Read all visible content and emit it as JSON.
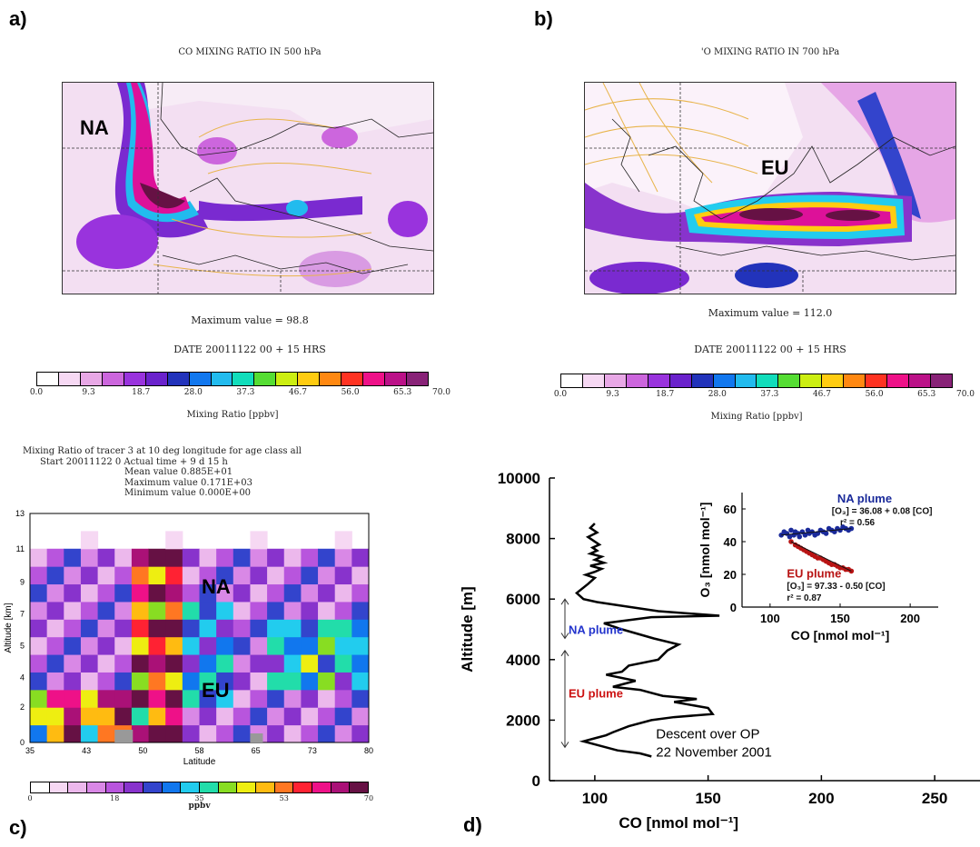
{
  "panels": {
    "a": {
      "label": "a)",
      "title": "CO MIXING RATIO IN 500 hPa",
      "region_label": "NA",
      "max_text": "Maximum value =  98.8",
      "date_text": "DATE 20011122   00 +   15  HRS"
    },
    "b": {
      "label": "b)",
      "title": "'O MIXING RATIO IN 700 hPa",
      "region_label": "EU",
      "max_text": "Maximum value = 112.0",
      "date_text": "DATE 20011122   00 +   15  HRS"
    },
    "c": {
      "label": "c)",
      "meta": [
        "Mixing Ratio of tracer  3 at   10 deg longitude for age class all",
        "Start 20011122      0   Actual time  +  9 d  15 h",
        "Mean value   0.885E+01",
        "Maximum value   0.171E+03",
        "Minimum value   0.000E+00"
      ],
      "na_label": "NA",
      "eu_label": "EU"
    },
    "d": {
      "label": "d)"
    }
  },
  "colorbar_ab": {
    "label": "Mixing Ratio [ppbv]",
    "ticks": [
      "0.0",
      "9.3",
      "18.7",
      "28.0",
      "37.3",
      "46.7",
      "56.0",
      "65.3",
      "70.0"
    ],
    "colors": [
      "#ffffff",
      "#f6d8f3",
      "#e8a8e6",
      "#cc66dd",
      "#9933dd",
      "#6a22cc",
      "#2233bb",
      "#1177ee",
      "#22bbee",
      "#11ddbb",
      "#55dd33",
      "#ccee11",
      "#ffcc11",
      "#ff8811",
      "#ff3322",
      "#ee1188",
      "#bb1188",
      "#882277"
    ]
  },
  "colorbar_c": {
    "label": "ppbv",
    "ticks": [
      "0",
      "18",
      "35",
      "53",
      "70"
    ],
    "colors": [
      "#ffffff",
      "#f6d8f3",
      "#ecb8ec",
      "#d988e6",
      "#b855dd",
      "#8833cc",
      "#3344cc",
      "#1177ee",
      "#22ccee",
      "#22ddaa",
      "#88dd22",
      "#eeee11",
      "#ffbb11",
      "#ff7722",
      "#ff2233",
      "#ee1188",
      "#aa1177",
      "#661144"
    ]
  },
  "chart_data": [
    {
      "type": "heatmap",
      "title": "Mixing Ratio of tracer  3 at   10 deg longitude for age class all",
      "xlabel": "Latitude",
      "ylabel": "Altitude [km]",
      "xlim": [
        35,
        80
      ],
      "ylim": [
        0,
        13
      ],
      "xticks": [
        "35",
        "43",
        "50",
        "58",
        "65",
        "73",
        "80"
      ],
      "yticks": [
        "0",
        "2",
        "4",
        "5",
        "7",
        "9",
        "11",
        "13"
      ],
      "yticks_values": [
        0,
        2,
        3.7,
        5.5,
        7.3,
        9.1,
        11,
        13
      ]
    },
    {
      "type": "line",
      "xlabel": "CO [nmol mol⁻¹]",
      "ylabel": "Altitude [m]",
      "xlim": [
        80,
        270
      ],
      "ylim": [
        0,
        10000
      ],
      "xticks": [
        100,
        150,
        200,
        250
      ],
      "yticks": [
        0,
        2000,
        4000,
        6000,
        8000,
        10000
      ],
      "annotation": [
        "Descent over OP",
        "22 November 2001"
      ],
      "plume_labels": [
        {
          "name": "NA plume",
          "range": [
            4700,
            6000
          ],
          "color": "#2233cc"
        },
        {
          "name": "EU plume",
          "range": [
            1100,
            4300
          ],
          "color": "#cc1111"
        }
      ],
      "series": [
        {
          "x": [
            100,
            98,
            101,
            97,
            100,
            102,
            99,
            101,
            98,
            103,
            100,
            104,
            98,
            103,
            100,
            96,
            100,
            97,
            92,
            95,
            101,
            110,
            128,
            155,
            125,
            104,
            112,
            126,
            137,
            132,
            128,
            115,
            112,
            105,
            118,
            108,
            120,
            130,
            145,
            135,
            150,
            152,
            135,
            125,
            115,
            108,
            105,
            100,
            95,
            100,
            110,
            120,
            125
          ],
          "y": [
            8500,
            8350,
            8200,
            8050,
            7900,
            7800,
            7700,
            7600,
            7500,
            7400,
            7300,
            7200,
            7100,
            7000,
            6900,
            6800,
            6700,
            6500,
            6200,
            6000,
            5900,
            5800,
            5600,
            5450,
            5400,
            5200,
            5000,
            4700,
            4500,
            4300,
            4000,
            3800,
            3600,
            3500,
            3300,
            3100,
            3000,
            2800,
            2700,
            2600,
            2400,
            2200,
            2100,
            2000,
            1800,
            1600,
            1500,
            1400,
            1300,
            1200,
            1000,
            900,
            800
          ]
        }
      ]
    },
    {
      "type": "scatter",
      "xlabel": "CO [nmol mol⁻¹]",
      "ylabel": "O₃ [nmol mol⁻¹]",
      "xlim": [
        80,
        220
      ],
      "ylim": [
        0,
        70
      ],
      "xticks": [
        100,
        150,
        200
      ],
      "yticks": [
        0,
        20,
        40,
        60
      ],
      "series": [
        {
          "name": "NA plume",
          "color": "#1a2a9a",
          "fit": "[O₃] = 36.08 + 0.08 [CO]",
          "r2": "r² = 0.56",
          "x": [
            108,
            110,
            112,
            114,
            115,
            117,
            118,
            120,
            121,
            123,
            125,
            127,
            128,
            130,
            132,
            134,
            136,
            138,
            140,
            142,
            144,
            146,
            148,
            150,
            152,
            154,
            156,
            158
          ],
          "y": [
            44,
            46,
            45,
            43,
            47,
            44,
            46,
            45,
            43,
            46,
            44,
            47,
            45,
            46,
            44,
            45,
            47,
            46,
            45,
            48,
            47,
            46,
            48,
            47,
            49,
            48,
            47,
            48
          ]
        },
        {
          "name": "EU plume",
          "color": "#b81414",
          "fit": "[O₃] = 97.33 - 0.50 [CO]",
          "r2": "r² = 0.87",
          "x": [
            115,
            118,
            120,
            122,
            124,
            126,
            128,
            130,
            132,
            134,
            136,
            138,
            140,
            142,
            144,
            146,
            148,
            150,
            152,
            154,
            156,
            158
          ],
          "y": [
            40,
            38,
            37,
            36,
            35,
            34,
            33,
            32,
            31,
            30,
            30,
            29,
            28,
            27,
            26,
            26,
            25,
            24,
            24,
            23,
            23,
            22
          ]
        }
      ]
    }
  ]
}
